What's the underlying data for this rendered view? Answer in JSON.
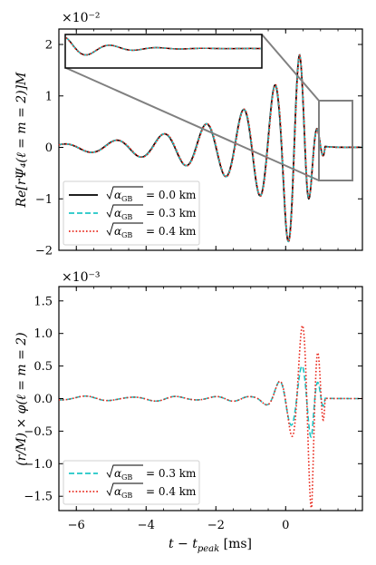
{
  "chart_data": [
    {
      "type": "line",
      "panel": "top",
      "multiplier": "×10⁻²",
      "ylabel": "Re[rΨ₄(ℓ = m = 2)]M",
      "xlabel": "",
      "xlim": [
        -6.5,
        2.2
      ],
      "ylim": [
        -2.0,
        2.3
      ],
      "yticks": [
        -2,
        -1,
        0,
        1,
        2
      ],
      "xticks": [
        -6,
        -4,
        -2,
        0
      ],
      "grid": false,
      "legend_position": "bottom-left",
      "series": [
        {
          "name": "√α_GB = 0.0 km",
          "color": "#000000",
          "dash": "solid"
        },
        {
          "name": "√α_GB = 0.3 km",
          "color": "#1fc6c6",
          "dash": "dashed"
        },
        {
          "name": "√α_GB = 0.4 km",
          "color": "#e8291d",
          "dash": "dotted"
        }
      ],
      "waveform_samples": {
        "t_ms": [
          -6.5,
          -6.0,
          -5.5,
          -5.0,
          -4.5,
          -4.0,
          -3.5,
          -3.0,
          -2.5,
          -2.0,
          -1.5,
          -1.0,
          -0.5,
          -0.2,
          0.0,
          0.2,
          0.4,
          0.5,
          0.6,
          0.7,
          0.8,
          1.0,
          1.3,
          1.6
        ],
        "envelope": [
          0.06,
          0.08,
          0.1,
          0.13,
          0.16,
          0.2,
          0.26,
          0.33,
          0.42,
          0.5,
          0.62,
          0.82,
          1.05,
          1.3,
          1.75,
          1.95,
          1.8,
          1.55,
          1.3,
          0.9,
          0.55,
          0.2,
          0.05,
          0.02
        ]
      },
      "inset_zoom_window": {
        "t_ms": [
          0.85,
          2.0
        ],
        "y": [
          -0.65,
          0.88
        ]
      }
    },
    {
      "type": "line",
      "panel": "bottom",
      "multiplier": "×10⁻³",
      "ylabel": "(r/M) × φ(ℓ = m = 2)",
      "xlabel": "t − t_peak [ms]",
      "xlim": [
        -6.5,
        2.2
      ],
      "ylim": [
        -1.72,
        1.72
      ],
      "yticks": [
        -1.5,
        -1.0,
        -0.5,
        0.0,
        0.5,
        1.0,
        1.5
      ],
      "xticks": [
        -6,
        -4,
        -2,
        0
      ],
      "grid": false,
      "legend_position": "bottom-left",
      "series": [
        {
          "name": "√α_GB = 0.3 km",
          "color": "#1fc6c6",
          "dash": "dashed",
          "peak_amplitude": 0.6
        },
        {
          "name": "√α_GB = 0.4 km",
          "color": "#e8291d",
          "dash": "dotted",
          "peak_amplitude": 1.72
        }
      ]
    }
  ],
  "labels": {
    "top_multiplier": "×10⁻²",
    "bottom_multiplier": "×10⁻³",
    "top_ylabel": "Re[rΨ₄(ℓ = m = 2)]M",
    "bottom_ylabel": "(r/M) × φ(ℓ = m = 2)",
    "xlabel": "t − t",
    "xlabel_sub": "peak",
    "xlabel_unit": " [ms]",
    "top_yticks": [
      "−2",
      "−1",
      "0",
      "1",
      "2"
    ],
    "bottom_yticks": [
      "−1.5",
      "−1.0",
      "−0.5",
      "0.0",
      "0.5",
      "1.0",
      "1.5"
    ],
    "xticks": [
      "−6",
      "−4",
      "−2",
      "0"
    ],
    "legend_top": [
      "= 0.0 km",
      "= 0.3 km",
      "= 0.4 km"
    ],
    "legend_bottom": [
      "= 0.3 km",
      "= 0.4 km"
    ],
    "legend_sym": "α",
    "legend_sub": "GB"
  }
}
